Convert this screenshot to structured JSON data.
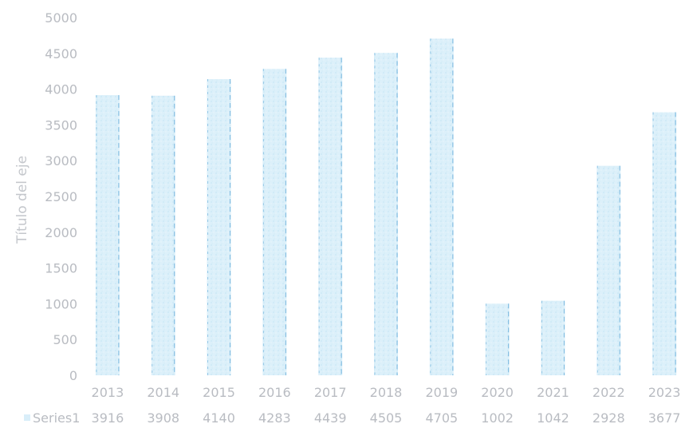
{
  "chart_data": {
    "type": "bar",
    "ylabel": "Título del eje",
    "ylim": [
      0,
      5000
    ],
    "yticks": [
      0,
      500,
      1000,
      1500,
      2000,
      2500,
      3000,
      3500,
      4000,
      4500,
      5000
    ],
    "categories": [
      "2013",
      "2014",
      "2015",
      "2016",
      "2017",
      "2018",
      "2019",
      "2020",
      "2021",
      "2022",
      "2023"
    ],
    "series": [
      {
        "name": "Series1",
        "values": [
          3916,
          3908,
          4140,
          4283,
          4439,
          4505,
          4705,
          1002,
          1042,
          2928,
          3677
        ]
      }
    ],
    "value_labels": [
      "3916",
      "3908",
      "4140",
      "4283",
      "4439",
      "4505",
      "4705",
      "1002",
      "1042",
      "2928",
      "3677"
    ],
    "data_table": true,
    "grid": false,
    "colors": {
      "bar": "#d9eef9",
      "bar_edge": "#5aa6d6",
      "text": "#b9bcc2"
    }
  }
}
